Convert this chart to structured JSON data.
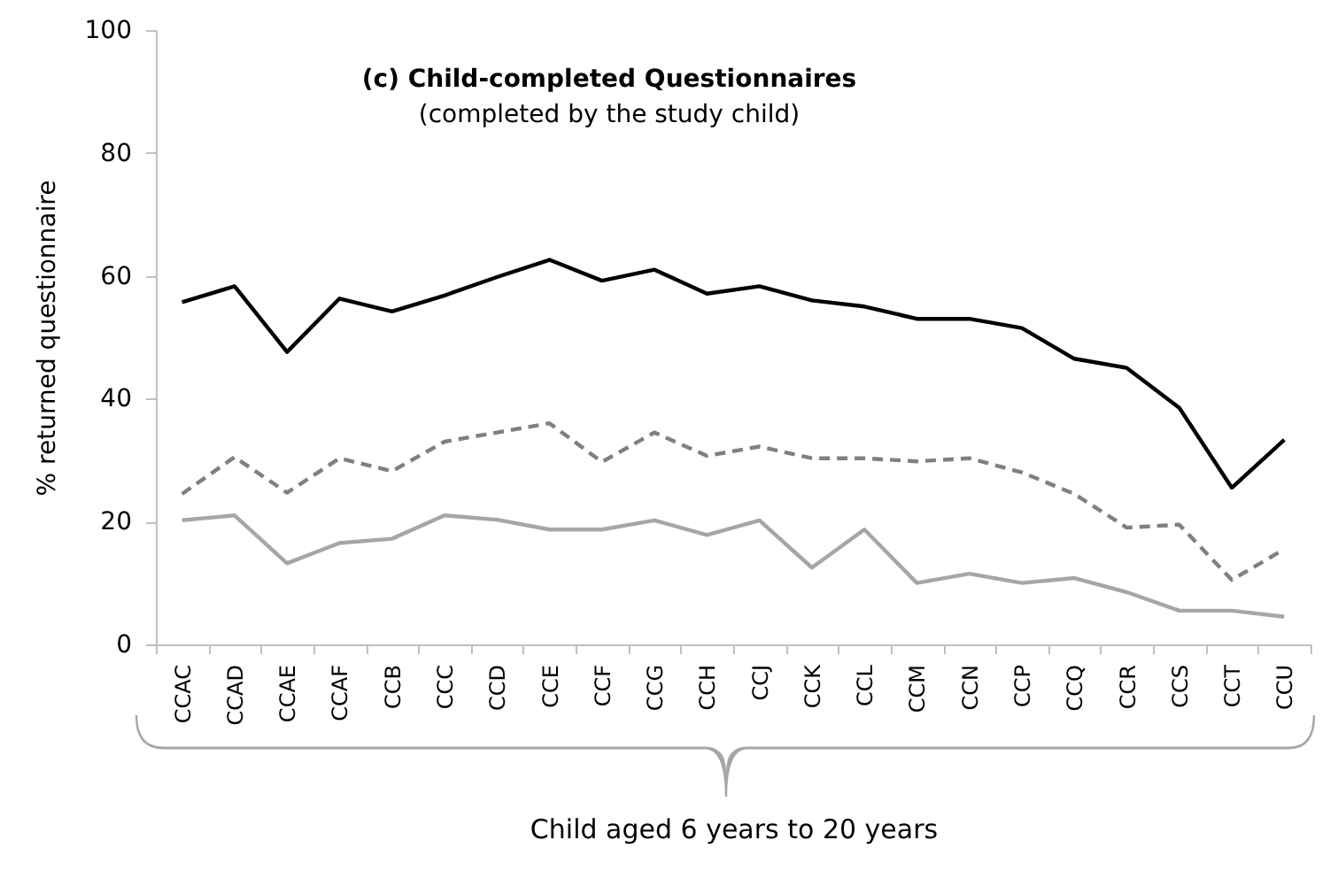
{
  "chart_data": {
    "type": "line",
    "title": "(c) Child-completed Questionnaires",
    "subtitle": "(completed by the study child)",
    "xlabel": "Child aged 6 years to 20 years",
    "ylabel": "% returned questionnaire",
    "categories": [
      "CCAC",
      "CCAD",
      "CCAE",
      "CCAF",
      "CCB",
      "CCC",
      "CCD",
      "CCE",
      "CCF",
      "CCG",
      "CCH",
      "CCJ",
      "CCK",
      "CCL",
      "CCM",
      "CCN",
      "CCP",
      "CCQ",
      "CCR",
      "CCS",
      "CCT",
      "CCU"
    ],
    "series": [
      {
        "color": "#000000",
        "line_style": "solid",
        "values": [
          55.7,
          58.3,
          47.6,
          56.3,
          54.2,
          56.8,
          59.8,
          62.6,
          59.2,
          61,
          57.1,
          58.3,
          56,
          55,
          53,
          53,
          51.5,
          46.5,
          45,
          38.5,
          25.5,
          33.3
        ]
      },
      {
        "color": "#808080",
        "line_style": "dashed",
        "values": [
          24.5,
          30.5,
          24.7,
          30.3,
          28.2,
          33,
          34.5,
          36,
          29.7,
          34.5,
          30.7,
          32.2,
          30.3,
          30.3,
          29.8,
          30.3,
          28,
          24.5,
          19,
          19.5,
          10.5,
          15.5
        ]
      },
      {
        "color": "#a6a6a6",
        "line_style": "solid",
        "values": [
          20.2,
          21,
          13.2,
          16.5,
          17.2,
          21,
          20.3,
          18.7,
          18.7,
          20.2,
          17.8,
          20.2,
          12.5,
          18.7,
          10,
          11.5,
          10,
          10.8,
          8.5,
          5.5,
          5.5,
          4.5
        ]
      }
    ],
    "ylim": [
      0,
      100
    ],
    "yticks": [
      0,
      20,
      40,
      60,
      80,
      100
    ],
    "grid": false
  }
}
